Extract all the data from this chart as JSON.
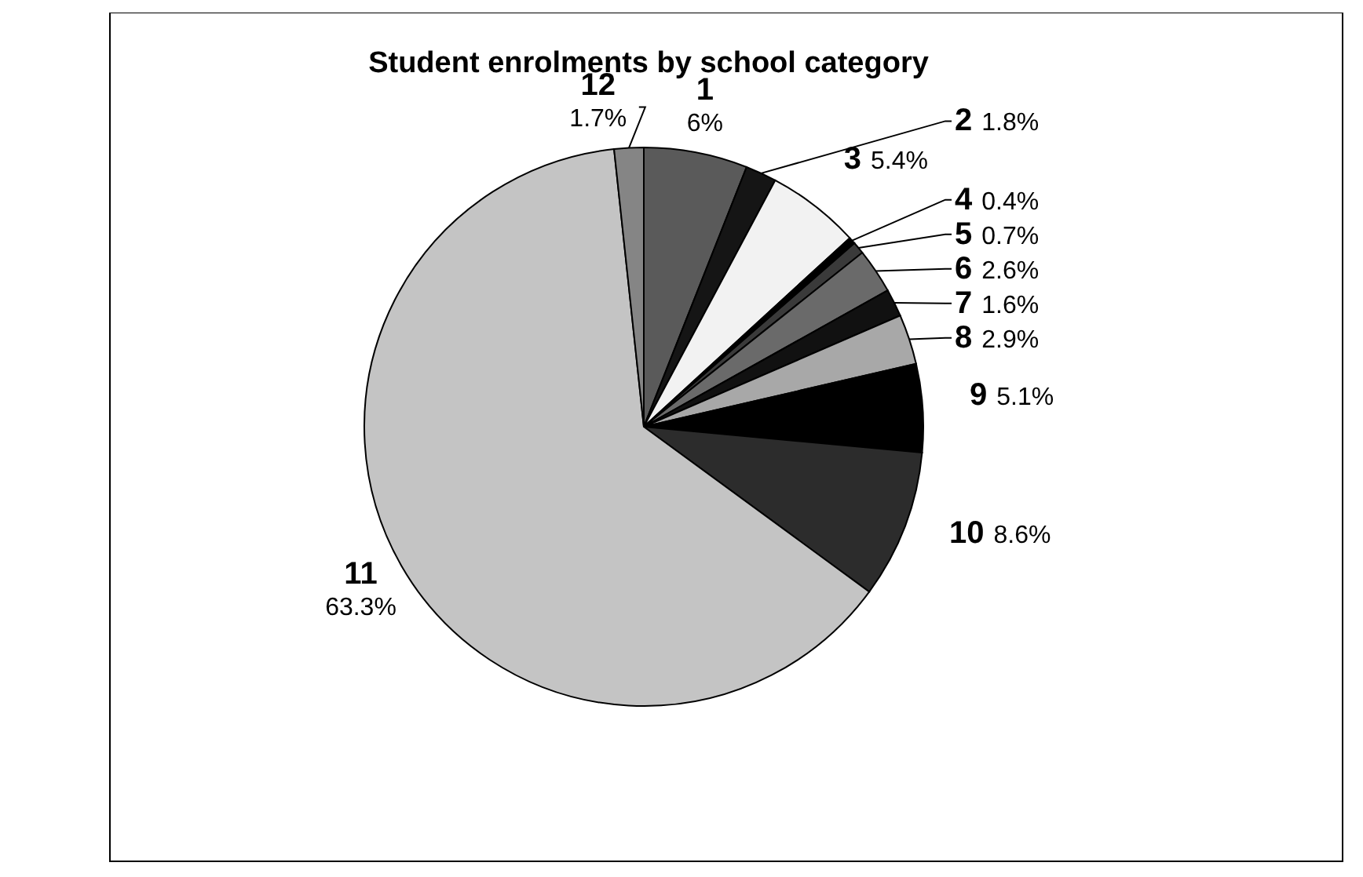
{
  "chart_data": {
    "type": "pie",
    "title": "Student enrolments by school category",
    "categories": [
      "1",
      "2",
      "3",
      "4",
      "5",
      "6",
      "7",
      "8",
      "9",
      "10",
      "11",
      "12"
    ],
    "values": [
      6,
      1.8,
      5.4,
      0.4,
      0.7,
      2.6,
      1.6,
      2.9,
      5.1,
      8.6,
      63.3,
      1.7
    ],
    "colors": [
      "#5a5a5a",
      "#151515",
      "#f2f2f2",
      "#000000",
      "#3a3a3a",
      "#6a6a6a",
      "#111111",
      "#a8a8a8",
      "#000000",
      "#2c2c2c",
      "#c4c4c4",
      "#858585"
    ],
    "value_labels": [
      "6%",
      "1.8%",
      "5.4%",
      "0.4%",
      "0.7%",
      "2.6%",
      "1.6%",
      "2.9%",
      "5.1%",
      "8.6%",
      "63.3%",
      "1.7%"
    ],
    "legend": false
  }
}
